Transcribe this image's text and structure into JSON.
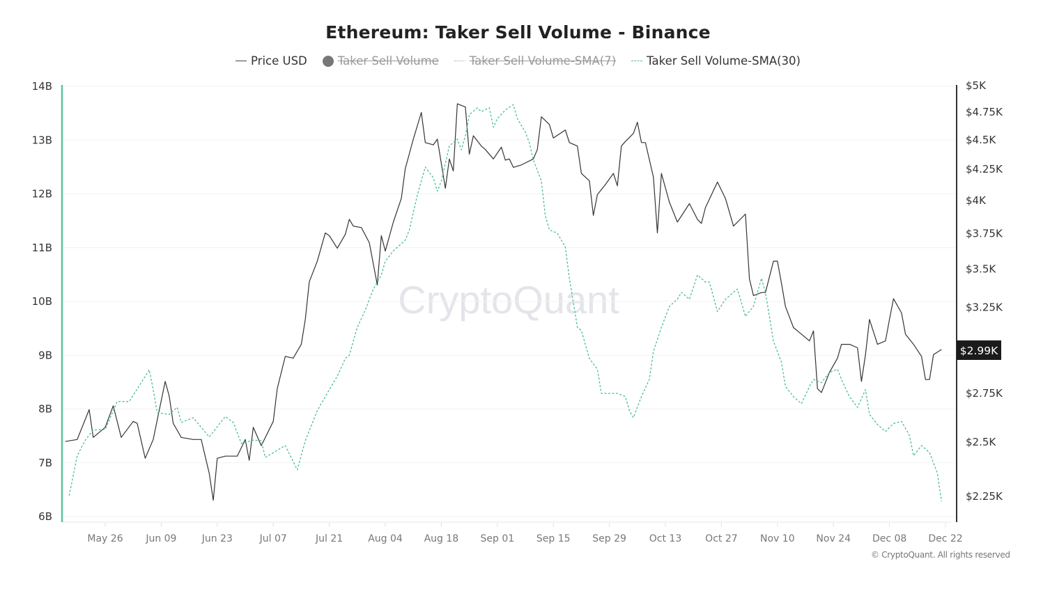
{
  "chart_data": {
    "type": "line",
    "title": "Ethereum: Taker Sell Volume - Binance",
    "legend": {
      "placement": "top",
      "items": [
        {
          "label": "Price USD",
          "active": true,
          "color": "#333333"
        },
        {
          "label": "Taker Sell Volume",
          "active": false,
          "color": "#777777"
        },
        {
          "label": "Taker Sell Volume-SMA(7)",
          "active": false,
          "color": "#aaaaaa"
        },
        {
          "label": "Taker Sell Volume-SMA(30)",
          "active": true,
          "color": "#4cbf8e"
        }
      ]
    },
    "x_ticks": [
      "May 26",
      "Jun 09",
      "Jun 23",
      "Jul 07",
      "Jul 21",
      "Aug 04",
      "Aug 18",
      "Sep 01",
      "Sep 15",
      "Sep 29",
      "Oct 13",
      "Oct 27",
      "Nov 10",
      "Nov 24",
      "Dec 08",
      "Dec 22"
    ],
    "y_left": {
      "ticks": [
        "14B",
        "13B",
        "12B",
        "11B",
        "10B",
        "9B",
        "8B",
        "7B",
        "6B"
      ],
      "range": [
        6,
        14
      ],
      "unit": "B",
      "scale": "linear"
    },
    "y_right": {
      "ticks": [
        "$5K",
        "$4.75K",
        "$4.5K",
        "$4.25K",
        "$4K",
        "$3.75K",
        "$3.5K",
        "$3.25K",
        "$2.75K",
        "$2.5K",
        "$2.25K"
      ],
      "tick_values": [
        5000,
        4750,
        4500,
        4250,
        4000,
        3750,
        3500,
        3250,
        2750,
        2500,
        2250
      ],
      "scale": "log",
      "current_label": "$2.99K"
    },
    "grid": true,
    "watermark": "CryptoQuant",
    "copyright": "© CryptoQuant. All rights reserved",
    "series": [
      {
        "name": "Price USD",
        "axis": "right",
        "style": "solid",
        "color": "#333333",
        "x": [
          "May 16",
          "May 19",
          "May 22",
          "May 23",
          "May 26",
          "May 28",
          "May 30",
          "Jun 2",
          "Jun 3",
          "Jun 5",
          "Jun 7",
          "Jun 10",
          "Jun 11",
          "Jun 12",
          "Jun 14",
          "Jun 17",
          "Jun 19",
          "Jun 21",
          "Jun 22",
          "Jun 23",
          "Jun 25",
          "Jun 28",
          "Jun 30",
          "Jul 1",
          "Jul 2",
          "Jul 4",
          "Jul 7",
          "Jul 8",
          "Jul 10",
          "Jul 12",
          "Jul 14",
          "Jul 15",
          "Jul 16",
          "Jul 18",
          "Jul 20",
          "Jul 21",
          "Jul 23",
          "Jul 25",
          "Jul 26",
          "Jul 27",
          "Jul 29",
          "Jul 31",
          "Aug 2",
          "Aug 3",
          "Aug 4",
          "Aug 6",
          "Aug 8",
          "Aug 9",
          "Aug 11",
          "Aug 13",
          "Aug 14",
          "Aug 16",
          "Aug 17",
          "Aug 19",
          "Aug 20",
          "Aug 21",
          "Aug 22",
          "Aug 24",
          "Aug 25",
          "Aug 26",
          "Aug 28",
          "Aug 29",
          "Aug 31",
          "Sep 2",
          "Sep 3",
          "Sep 4",
          "Sep 5",
          "Sep 7",
          "Sep 10",
          "Sep 11",
          "Sep 12",
          "Sep 14",
          "Sep 15",
          "Sep 18",
          "Sep 19",
          "Sep 21",
          "Sep 22",
          "Sep 24",
          "Sep 25",
          "Sep 26",
          "Sep 28",
          "Sep 30",
          "Oct 1",
          "Oct 2",
          "Oct 3",
          "Oct 5",
          "Oct 6",
          "Oct 7",
          "Oct 8",
          "Oct 10",
          "Oct 11",
          "Oct 12",
          "Oct 14",
          "Oct 16",
          "Oct 19",
          "Oct 21",
          "Oct 22",
          "Oct 23",
          "Oct 26",
          "Oct 28",
          "Oct 30",
          "Nov 2",
          "Nov 3",
          "Nov 4",
          "Nov 6",
          "Nov 7",
          "Nov 9",
          "Nov 10",
          "Nov 11",
          "Nov 12",
          "Nov 14",
          "Nov 16",
          "Nov 18",
          "Nov 19",
          "Nov 20",
          "Nov 21",
          "Nov 23",
          "Nov 25",
          "Nov 26",
          "Nov 28",
          "Nov 30",
          "Dec 1",
          "Dec 2",
          "Dec 3",
          "Dec 5",
          "Dec 7",
          "Dec 8",
          "Dec 9",
          "Dec 11",
          "Dec 12",
          "Dec 14",
          "Dec 16",
          "Dec 17",
          "Dec 18",
          "Dec 19",
          "Dec 21"
        ],
        "values": [
          2500,
          2510,
          2660,
          2520,
          2570,
          2680,
          2520,
          2600,
          2590,
          2420,
          2510,
          2810,
          2730,
          2590,
          2520,
          2510,
          2510,
          2350,
          2230,
          2420,
          2430,
          2430,
          2510,
          2410,
          2570,
          2480,
          2600,
          2770,
          2950,
          2940,
          3020,
          3170,
          3410,
          3550,
          3750,
          3730,
          3640,
          3740,
          3850,
          3800,
          3790,
          3680,
          3390,
          3730,
          3620,
          3830,
          4010,
          4250,
          4500,
          4740,
          4470,
          4450,
          4500,
          4090,
          4330,
          4230,
          4820,
          4790,
          4370,
          4530,
          4440,
          4410,
          4330,
          4430,
          4320,
          4330,
          4260,
          4280,
          4330,
          4410,
          4700,
          4630,
          4510,
          4580,
          4470,
          4440,
          4210,
          4150,
          3880,
          4040,
          4120,
          4210,
          4110,
          4440,
          4480,
          4550,
          4650,
          4470,
          4470,
          4180,
          3750,
          4210,
          3980,
          3830,
          3970,
          3850,
          3820,
          3940,
          4140,
          4010,
          3800,
          3890,
          3430,
          3320,
          3340,
          3340,
          3550,
          3550,
          3400,
          3250,
          3120,
          3080,
          3040,
          3100,
          2770,
          2750,
          2860,
          2940,
          3020,
          3020,
          3000,
          2810,
          2960,
          3170,
          3020,
          3040,
          3170,
          3300,
          3210,
          3080,
          3020,
          2950,
          2820,
          2820,
          2960,
          2990
        ]
      },
      {
        "name": "Taker Sell Volume-SMA(30)",
        "axis": "left",
        "style": "dashed",
        "color": "#4cbf8e",
        "x": [
          "May 17",
          "May 19",
          "May 21",
          "May 23",
          "May 26",
          "May 29",
          "Jun 1",
          "Jun 4",
          "Jun 6",
          "Jun 7",
          "Jun 8",
          "Jun 11",
          "Jun 13",
          "Jun 14",
          "Jun 17",
          "Jun 21",
          "Jun 25",
          "Jun 27",
          "Jun 29",
          "Jul 2",
          "Jul 4",
          "Jul 5",
          "Jul 10",
          "Jul 13",
          "Jul 15",
          "Jul 18",
          "Jul 21",
          "Jul 23",
          "Jul 25",
          "Jul 26",
          "Jul 28",
          "Jul 30",
          "Aug 1",
          "Aug 3",
          "Aug 4",
          "Aug 6",
          "Aug 9",
          "Aug 10",
          "Aug 12",
          "Aug 14",
          "Aug 16",
          "Aug 17",
          "Aug 18",
          "Aug 20",
          "Aug 22",
          "Aug 23",
          "Aug 24",
          "Aug 25",
          "Aug 27",
          "Aug 28",
          "Aug 30",
          "Aug 31",
          "Sep 1",
          "Sep 3",
          "Sep 5",
          "Sep 6",
          "Sep 8",
          "Sep 9",
          "Sep 10",
          "Sep 12",
          "Sep 13",
          "Sep 14",
          "Sep 16",
          "Sep 18",
          "Sep 19",
          "Sep 21",
          "Sep 22",
          "Sep 24",
          "Sep 26",
          "Sep 27",
          "Oct 1",
          "Oct 3",
          "Oct 4",
          "Oct 5",
          "Oct 7",
          "Oct 9",
          "Oct 10",
          "Oct 12",
          "Oct 14",
          "Oct 16",
          "Oct 17",
          "Oct 19",
          "Oct 21",
          "Oct 23",
          "Oct 24",
          "Oct 26",
          "Oct 28",
          "Oct 30",
          "Oct 31",
          "Nov 2",
          "Nov 4",
          "Nov 6",
          "Nov 7",
          "Nov 9",
          "Nov 11",
          "Nov 12",
          "Nov 14",
          "Nov 16",
          "Nov 18",
          "Nov 19",
          "Nov 21",
          "Nov 23",
          "Nov 25",
          "Nov 26",
          "Nov 28",
          "Nov 30",
          "Dec 2",
          "Dec 3",
          "Dec 5",
          "Dec 7",
          "Dec 9",
          "Dec 11",
          "Dec 13",
          "Dec 14",
          "Dec 16",
          "Dec 18",
          "Dec 20",
          "Dec 21"
        ],
        "values": [
          6.39,
          7.13,
          7.42,
          7.61,
          7.62,
          8.14,
          8.14,
          8.49,
          8.73,
          8.36,
          7.93,
          7.9,
          8.03,
          7.75,
          7.84,
          7.48,
          7.86,
          7.75,
          7.36,
          7.42,
          7.41,
          7.1,
          7.32,
          6.87,
          7.41,
          7.97,
          8.36,
          8.61,
          8.94,
          9.0,
          9.52,
          9.84,
          10.23,
          10.49,
          10.75,
          10.94,
          11.14,
          11.33,
          11.98,
          12.5,
          12.3,
          12.05,
          12.24,
          12.89,
          13.02,
          12.82,
          13.08,
          13.47,
          13.6,
          13.53,
          13.6,
          13.24,
          13.4,
          13.56,
          13.66,
          13.4,
          13.15,
          12.95,
          12.63,
          12.24,
          11.59,
          11.33,
          11.27,
          11.01,
          10.43,
          9.52,
          9.46,
          8.94,
          8.74,
          8.29,
          8.29,
          8.23,
          7.97,
          7.84,
          8.23,
          8.55,
          9.07,
          9.52,
          9.91,
          10.04,
          10.17,
          10.04,
          10.49,
          10.36,
          10.36,
          9.81,
          10.04,
          10.17,
          10.23,
          9.72,
          9.91,
          10.43,
          10.17,
          9.26,
          8.87,
          8.42,
          8.23,
          8.1,
          8.42,
          8.55,
          8.49,
          8.68,
          8.74,
          8.55,
          8.23,
          8.03,
          8.36,
          7.9,
          7.71,
          7.58,
          7.73,
          7.77,
          7.51,
          7.13,
          7.32,
          7.19,
          6.8,
          6.28
        ]
      }
    ]
  }
}
